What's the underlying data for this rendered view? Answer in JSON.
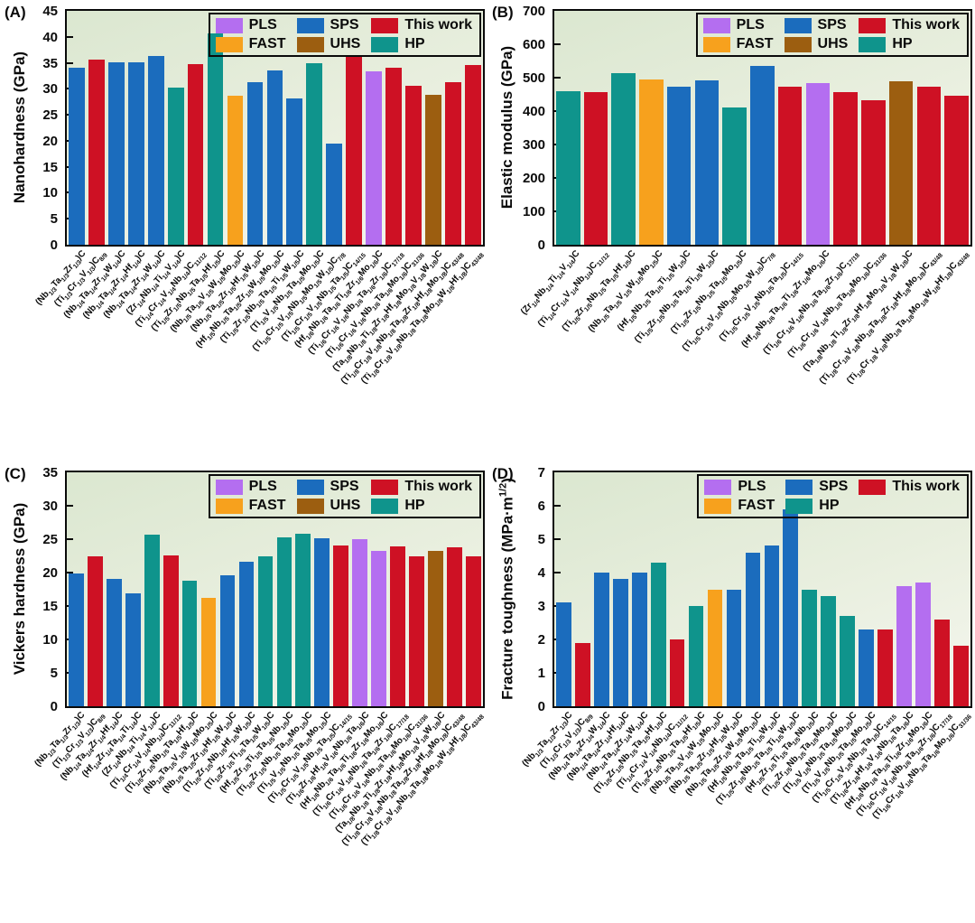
{
  "legend_colors": {
    "PLS": "#b46ef0",
    "FAST": "#f7a11d",
    "SPS": "#1b6cbd",
    "UHS": "#9c5e10",
    "HP": "#0f948c",
    "This work": "#ce1124"
  },
  "chart_data": [
    {
      "id": "a",
      "type": "bar",
      "title": "(A)",
      "ylabel": "Nanohardness (GPa)",
      "ylim": [
        0,
        45
      ],
      "ytick_step": 5,
      "grid": false,
      "legend_position": "top-right",
      "legend_rows": [
        [
          "PLS",
          "SPS",
          "This work"
        ],
        [
          "FAST",
          "UHS",
          "HP"
        ]
      ],
      "bars": [
        {
          "label": "(Nb1/3Ta1/3Zr1/3)C",
          "method": "SPS",
          "value": 34.1
        },
        {
          "label": "(Ti1/3Cr1/3V1/3)C8/9",
          "method": "This work",
          "value": 35.7
        },
        {
          "label": "(Nb1/4Ta1/4Zr1/4W1/4)C",
          "method": "SPS",
          "value": 35.1
        },
        {
          "label": "(Nb1/4Ta1/4Zr1/4Hf1/4)C",
          "method": "SPS",
          "value": 35.1
        },
        {
          "label": "(Nb1/4Ta1/4Zr1/4W1/4)C",
          "method": "SPS",
          "value": 36.3
        },
        {
          "label": "(Zr1/4Nb1/4Ti1/4V1/4)C",
          "method": "HP",
          "value": 30.3
        },
        {
          "label": "(Ti1/4Cr1/4V1/4Nb1/4)C11/12",
          "method": "This work",
          "value": 34.8
        },
        {
          "label": "(Ti1/5Zr1/5Nb1/5Ta1/5Hf1/5)C",
          "method": "HP",
          "value": 40.6
        },
        {
          "label": "(Nb1/5Ta1/5V1/5W1/5Mo1/5)C",
          "method": "FAST",
          "value": 28.7
        },
        {
          "label": "(Nb1/5Ta1/5Zr1/5Hf1/5W1/5)C",
          "method": "SPS",
          "value": 31.2
        },
        {
          "label": "(Hf1/5Nb1/5Ta1/5Zr1/5W1/5Mo1/5)C",
          "method": "SPS",
          "value": 33.5
        },
        {
          "label": "(Ti1/5Zr1/5Nb1/5Ta1/5Ti1/5W1/5)C",
          "method": "SPS",
          "value": 28.2
        },
        {
          "label": "(Ti1/5V1/5Nb1/5Ta1/5Mo1/5)C",
          "method": "HP",
          "value": 34.9
        },
        {
          "label": "(Ti1/5Cr1/5V1/5Nb1/5Mo1/5W1/5)C7/8",
          "method": "SPS",
          "value": 19.4
        },
        {
          "label": "(Ti1/5Cr1/5V1/5Nb1/5Ta1/5)C14/15",
          "method": "This work",
          "value": 36.1
        },
        {
          "label": "(Hf1/6Nb1/6Ta1/6Ti1/6Zr1/6Mo1/6)C",
          "method": "PLS",
          "value": 33.3
        },
        {
          "label": "(Ti1/6Cr1/6V1/6Nb1/6Ta1/6Zr1/6)C17/18",
          "method": "This work",
          "value": 34.1
        },
        {
          "label": "(Ti1/6Cr1/6V1/6Nb1/6Ta1/6Mo1/6)C31/36",
          "method": "This work",
          "value": 30.6
        },
        {
          "label": "(Ta1/8Nb1/8Ti1/8Zr1/8Hf1/8Mo1/8V1/8W1/8)C",
          "method": "UHS",
          "value": 28.9
        },
        {
          "label": "(Ti1/8Cr1/8V1/8Nb1/8Ta1/8Zr1/8Hf1/8Mo1/8)C43/48",
          "method": "This work",
          "value": 31.2
        },
        {
          "label": "(Ti1/8Cr1/8V1/8Nb1/8Ta1/8Mo1/8W1/8Hf1/8)C43/48",
          "method": "This work",
          "value": 34.5
        }
      ]
    },
    {
      "id": "b",
      "type": "bar",
      "title": "(B)",
      "ylabel": "Elastic modulus (GPa)",
      "ylim": [
        0,
        700
      ],
      "ytick_step": 100,
      "grid": false,
      "legend_position": "top-right",
      "legend_rows": [
        [
          "PLS",
          "SPS",
          "This work"
        ],
        [
          "FAST",
          "UHS",
          "HP"
        ]
      ],
      "bars": [
        {
          "label": "(Zr1/4Nb1/4Ti1/4V1/4)C",
          "method": "HP",
          "value": 460
        },
        {
          "label": "(Ti1/4Cr1/4V1/4Nb1/4)C11/12",
          "method": "This work",
          "value": 458
        },
        {
          "label": "(Ti1/5Zr1/5Nb1/5Ta1/5Hf1/5)C",
          "method": "HP",
          "value": 513
        },
        {
          "label": "(Nb1/5Ta1/5V1/5W1/5Mo1/5)C",
          "method": "FAST",
          "value": 495
        },
        {
          "label": "(Hf1/5Nb1/5Ta1/5Ti1/5W1/5)C",
          "method": "SPS",
          "value": 474
        },
        {
          "label": "(Ti1/5Zr1/5Nb1/5Ta1/5Ti1/5W1/5)C",
          "method": "SPS",
          "value": 492
        },
        {
          "label": "(Ti1/5Zr1/5Nb1/5Ta1/5Mo1/5)C",
          "method": "HP",
          "value": 410
        },
        {
          "label": "(Ti1/5Cr1/5V1/5Nb1/5Mo1/5W1/5)C7/8",
          "method": "SPS",
          "value": 536
        },
        {
          "label": "(Ti1/5Cr1/5V1/5Nb1/5Ta1/5)C14/15",
          "method": "This work",
          "value": 472
        },
        {
          "label": "(Hf1/6Nb1/6Ta1/6Ti1/6Zr1/6Mo1/6)C",
          "method": "PLS",
          "value": 483
        },
        {
          "label": "(Ti1/6Cr1/6V1/6Nb1/6Ta1/6Zr1/6)C17/18",
          "method": "This work",
          "value": 458
        },
        {
          "label": "(Ti1/6Cr1/6V1/6Nb1/6Ta1/6Mo1/6)C31/36",
          "method": "This work",
          "value": 433
        },
        {
          "label": "(Ta1/8Nb1/8Ti1/8Zr1/8Hf1/8Mo1/8V1/8W1/8)C",
          "method": "UHS",
          "value": 490
        },
        {
          "label": "(Ti1/8Cr1/8V1/8Nb1/8Ta1/8Zr1/8Hf1/8Mo1/8)C43/48",
          "method": "This work",
          "value": 473
        },
        {
          "label": "(Ti1/8Cr1/8V1/8Nb1/8Ta1/8Mo1/8W1/8Hf1/8)C43/48",
          "method": "This work",
          "value": 446
        }
      ]
    },
    {
      "id": "c",
      "type": "bar",
      "title": "(C)",
      "ylabel": "Vickers hardness (GPa)",
      "ylim": [
        0,
        35
      ],
      "ytick_step": 5,
      "grid": false,
      "legend_position": "top-right",
      "legend_rows": [
        [
          "PLS",
          "SPS",
          "This work"
        ],
        [
          "FAST",
          "UHS",
          "HP"
        ]
      ],
      "bars": [
        {
          "label": "(Nb1/3Ta1/3Zr1/3)C",
          "method": "SPS",
          "value": 19.9
        },
        {
          "label": "(Ti1/3Cr1/3V1/3)C8/9",
          "method": "This work",
          "value": 22.5
        },
        {
          "label": "(Nb1/4Ta1/4Zr1/4Hf1/4)C",
          "method": "SPS",
          "value": 19.0
        },
        {
          "label": "(Hf1/4Zr1/4Ta1/4Ti1/4)C",
          "method": "SPS",
          "value": 16.9
        },
        {
          "label": "(Zr1/4Nb1/4Ti1/4V1/4)C",
          "method": "HP",
          "value": 25.7
        },
        {
          "label": "(Ti1/4Cr1/4V1/4Nb1/4)C11/12",
          "method": "This work",
          "value": 22.6
        },
        {
          "label": "(Ti1/5Zr1/5Nb1/5Ta1/5Hf1/5)C",
          "method": "HP",
          "value": 18.8
        },
        {
          "label": "(Nb1/5Ta1/5V1/5W1/5Mo1/5)C",
          "method": "FAST",
          "value": 16.2
        },
        {
          "label": "(Nb1/5Ta1/5Zr1/5Hf1/5W1/5)C",
          "method": "SPS",
          "value": 19.6
        },
        {
          "label": "(Ti1/5Zr1/5Nb1/5Hf1/5W1/5)C",
          "method": "SPS",
          "value": 21.6
        },
        {
          "label": "(Ti1/5Zr1/5Ti1/5Ta1/5W1/5)C",
          "method": "HP",
          "value": 22.4
        },
        {
          "label": "(Hf1/5Zr1/5Ti1/5Ta1/5Nb1/5)C",
          "method": "HP",
          "value": 25.3
        },
        {
          "label": "(Ti1/5Zr1/5Nb1/5Ta1/5Mo1/5)C",
          "method": "HP",
          "value": 25.8
        },
        {
          "label": "(Ti1/5V1/5Nb1/5Ta1/5Mo1/5)C",
          "method": "SPS",
          "value": 25.1
        },
        {
          "label": "(Ti1/5Cr1/5V1/5Nb1/5Ta1/5)C14/15",
          "method": "This work",
          "value": 24.1
        },
        {
          "label": "(Ti1/6Zr1/6Hf1/6V1/6Nb1/6Ta1/6)C",
          "method": "PLS",
          "value": 25.0
        },
        {
          "label": "(Hf1/6Nb1/6Ta1/6Ti1/6Zr1/6Mo1/6)C",
          "method": "PLS",
          "value": 23.2
        },
        {
          "label": "(Ti1/6Cr1/6V1/6Nb1/6Ta1/6Zr1/6)C17/18",
          "method": "This work",
          "value": 23.9
        },
        {
          "label": "(Ti1/6Cr1/6V1/6Nb1/6Ta1/6Mo1/6)C31/36",
          "method": "This work",
          "value": 22.5
        },
        {
          "label": "(Ta1/8Nb1/8Ti1/8Zr1/8Hf1/8Mo1/8V1/8W1/8)C",
          "method": "UHS",
          "value": 23.3
        },
        {
          "label": "(Ti1/8Cr1/8V1/8Nb1/8Ta1/8Zr1/8Hf1/8Mo1/8)C43/48",
          "method": "This work",
          "value": 23.8
        },
        {
          "label": "(Ti1/8Cr1/8V1/8Nb1/8Ta1/8Mo1/8W1/8Hf1/8)C43/48",
          "method": "This work",
          "value": 22.5
        }
      ]
    },
    {
      "id": "d",
      "type": "bar",
      "title": "(D)",
      "ylabel": "Fracture toughness (MPa·m1/2)",
      "ylim": [
        0,
        7
      ],
      "ytick_step": 1,
      "grid": false,
      "legend_position": "top-right",
      "legend_rows": [
        [
          "PLS",
          "SPS",
          "This work"
        ],
        [
          "FAST",
          "HP"
        ]
      ],
      "bars": [
        {
          "label": "(Nb1/3Ta1/3Zr1/3)C",
          "method": "SPS",
          "value": 3.1
        },
        {
          "label": "(Ti1/3Cr1/3V1/3)C8/9",
          "method": "This work",
          "value": 1.9
        },
        {
          "label": "(Nb1/4Ta1/4Zr1/4W1/4)C",
          "method": "SPS",
          "value": 4.0
        },
        {
          "label": "(Nb1/4Ta1/4Zr1/4Hf1/4)C",
          "method": "SPS",
          "value": 3.8
        },
        {
          "label": "(Nb1/4Ta1/4Zr1/4W1/4)C",
          "method": "SPS",
          "value": 4.0
        },
        {
          "label": "(Ti1/5Zr1/5Nb1/5Ta1/5Hf1/5)C",
          "method": "HP",
          "value": 4.3
        },
        {
          "label": "(Ti1/4Cr1/4V1/4Nb1/4)C11/12",
          "method": "This work",
          "value": 2.0
        },
        {
          "label": "(Ti1/5Zr1/5Nb1/5Ta1/5Hf1/5)C",
          "method": "HP",
          "value": 3.0
        },
        {
          "label": "(Nb1/5Ta1/5V1/5W1/5Mo1/5)C",
          "method": "FAST",
          "value": 3.5
        },
        {
          "label": "(Nb1/5Ta1/5Zr1/5Hf1/5W1/5)C",
          "method": "SPS",
          "value": 3.5
        },
        {
          "label": "(Nb1/5Ta1/5Zr1/5W1/5Mo1/5)C",
          "method": "SPS",
          "value": 4.6
        },
        {
          "label": "(Hf1/5Nb1/5Ta1/5Ti1/5W1/5)C",
          "method": "SPS",
          "value": 4.8
        },
        {
          "label": "(Ti1/5Zr1/5Nb1/5Ta1/5Ti1/5W1/5)C",
          "method": "SPS",
          "value": 5.9
        },
        {
          "label": "(Hf1/5Zr1/5Ti1/5Ta1/5Nb1/5)C",
          "method": "HP",
          "value": 3.5
        },
        {
          "label": "(Ti1/5Zr1/5Nb1/5Ta1/5Mo1/5)C",
          "method": "HP",
          "value": 3.3
        },
        {
          "label": "(Ti1/5V1/5Nb1/5Ta1/5Mo1/5)C",
          "method": "HP",
          "value": 2.7
        },
        {
          "label": "(Ti1/5V1/5Nb1/5Ta1/5Mo1/5)C",
          "method": "SPS",
          "value": 2.3
        },
        {
          "label": "(Ti1/5Cr1/5V1/5Nb1/5Ta1/5)C14/15",
          "method": "This work",
          "value": 2.3
        },
        {
          "label": "(Ti1/6Zr1/6Hf1/6V1/6Nb1/6Ta1/6)C",
          "method": "PLS",
          "value": 3.6
        },
        {
          "label": "(Hf1/6Nb1/6Ta1/6Ti1/6Zr1/6Mo1/6)C",
          "method": "PLS",
          "value": 3.7
        },
        {
          "label": "(Ti1/6Cr1/6V1/6Nb1/6Ta1/6Zr1/6)C17/18",
          "method": "This work",
          "value": 2.6
        },
        {
          "label": "(Ti1/6Cr1/6V1/6Nb1/6Ta1/6Mo1/6)C31/36",
          "method": "This work",
          "value": 1.8
        }
      ]
    }
  ]
}
